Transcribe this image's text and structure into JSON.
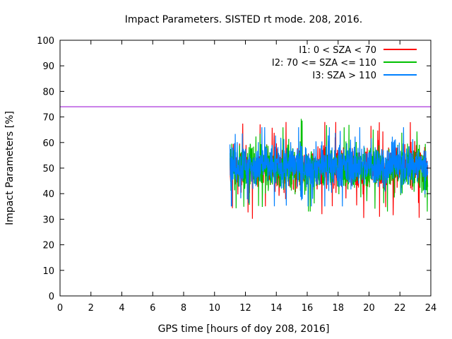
{
  "chart_data": {
    "type": "line",
    "title": "Impact Parameters. SISTED rt mode. 208, 2016.",
    "xlabel": "GPS time [hours of doy 208, 2016]",
    "ylabel": "Impact Parameters [%]",
    "xlim": [
      0,
      24
    ],
    "ylim": [
      0,
      100
    ],
    "xticks": [
      0,
      2,
      4,
      6,
      8,
      10,
      12,
      14,
      16,
      18,
      20,
      22,
      24
    ],
    "yticks": [
      0,
      10,
      20,
      30,
      40,
      50,
      60,
      70,
      80,
      90,
      100
    ],
    "reference_line": {
      "y": 74,
      "color": "#9400d3"
    },
    "legend_position": "top-right",
    "series": [
      {
        "name": "I1: 0 < SZA < 70",
        "color": "#ff0000",
        "x_range": [
          11.0,
          23.8
        ],
        "mean": 50,
        "min": 29,
        "max": 68
      },
      {
        "name": "I2: 70 <= SZA <= 110",
        "color": "#00c000",
        "x_range": [
          11.0,
          23.8
        ],
        "mean": 50,
        "min": 33,
        "max": 71
      },
      {
        "name": "I3: SZA > 110",
        "color": "#0080ff",
        "x_range": [
          11.0,
          23.8
        ],
        "mean": 51,
        "min": 35,
        "max": 66
      }
    ]
  }
}
